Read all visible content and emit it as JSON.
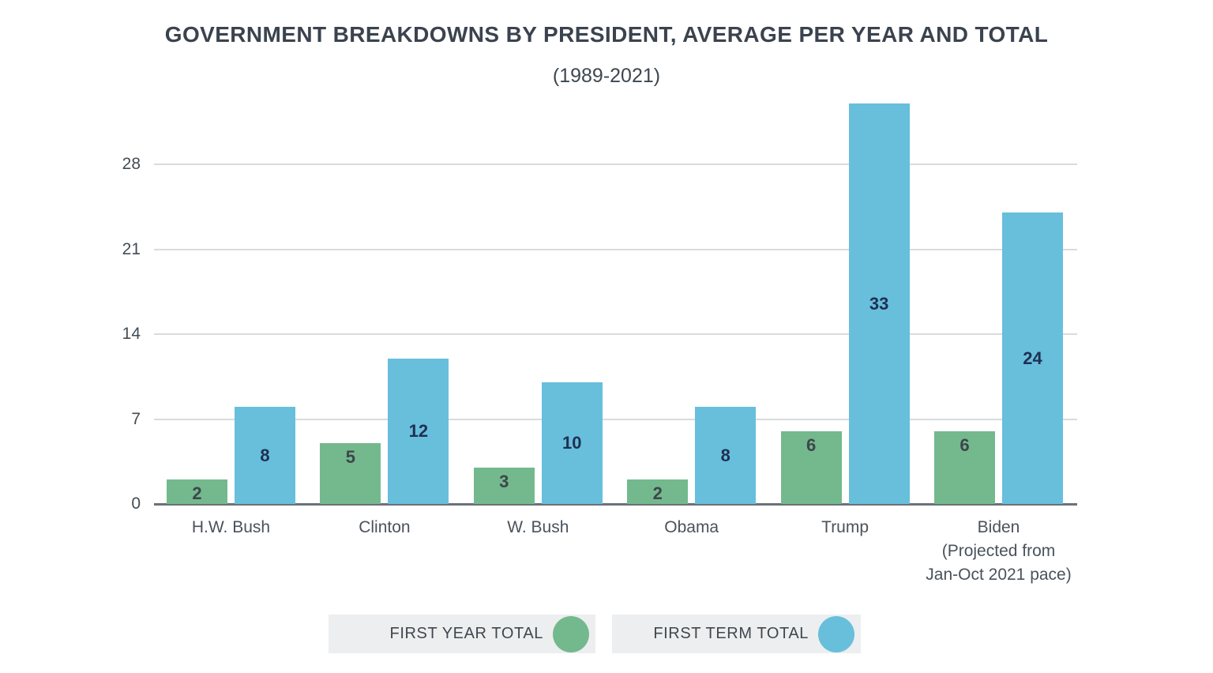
{
  "page": {
    "background_color": "#FFFFFF"
  },
  "chart_data": {
    "type": "bar",
    "title": "GOVERNMENT BREAKDOWNS BY PRESIDENT, AVERAGE PER YEAR AND TOTAL",
    "subtitle": "(1989-2021)",
    "categories": [
      {
        "label": "H.W. Bush",
        "sublabel": ""
      },
      {
        "label": "Clinton",
        "sublabel": ""
      },
      {
        "label": "W. Bush",
        "sublabel": ""
      },
      {
        "label": "Obama",
        "sublabel": ""
      },
      {
        "label": "Trump",
        "sublabel": ""
      },
      {
        "label": "Biden",
        "sublabel": "(Projected from\nJan-Oct 2021 pace)"
      }
    ],
    "series": [
      {
        "name": "FIRST YEAR TOTAL",
        "color": "#73B98D",
        "values": [
          2,
          5,
          3,
          2,
          6,
          6
        ],
        "value_label_color": "#3E454C",
        "value_label_position": "top"
      },
      {
        "name": "FIRST TERM TOTAL",
        "color": "#67BFDC",
        "values": [
          8,
          12,
          10,
          8,
          33,
          24
        ],
        "value_label_color": "#203052",
        "value_label_position": "center"
      }
    ],
    "y_ticks": [
      0,
      7,
      14,
      21,
      28
    ],
    "ylim": [
      0,
      33
    ],
    "grid": "horizontal",
    "gridline_color": "#D9DBDD",
    "axis_line_color": "#6B7176",
    "legend_position": "bottom"
  },
  "legend": {
    "items": [
      {
        "label": "FIRST YEAR TOTAL",
        "color": "#73B98D"
      },
      {
        "label": "FIRST TERM TOTAL",
        "color": "#67BFDC"
      }
    ]
  }
}
